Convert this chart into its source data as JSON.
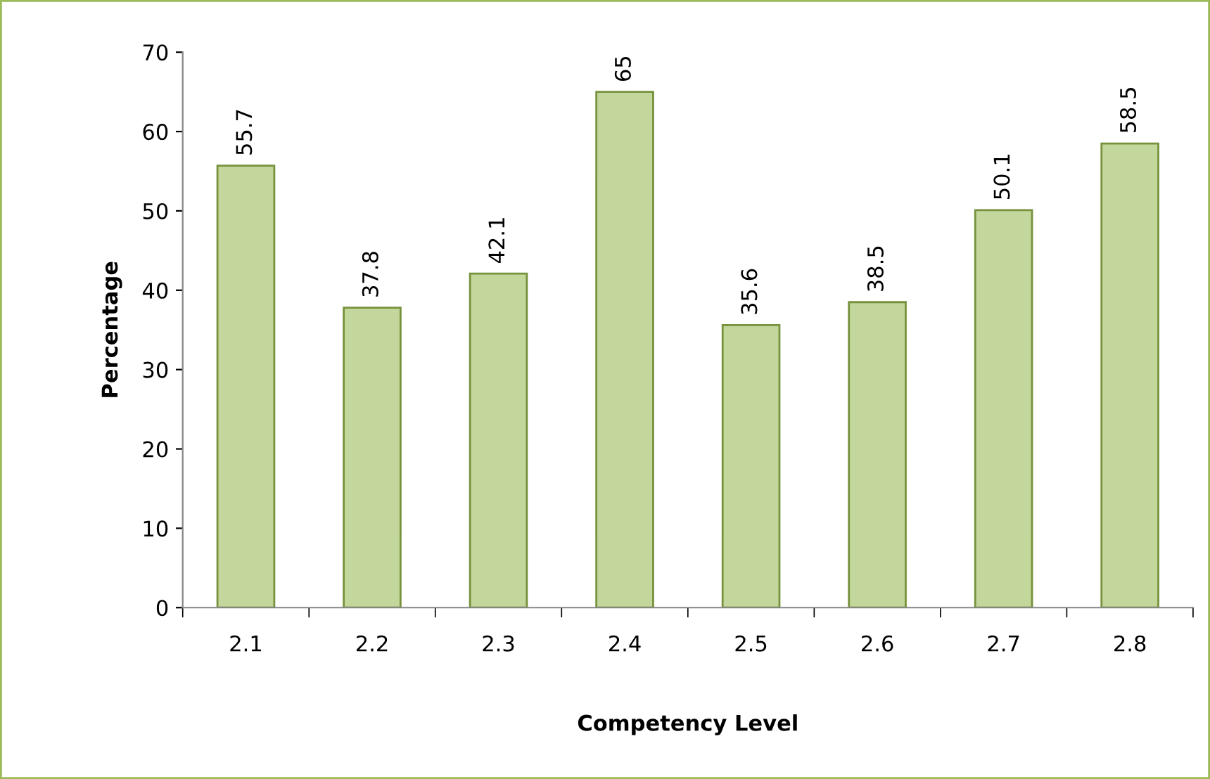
{
  "chart_data": {
    "type": "bar",
    "xlabel": "Competency Level",
    "ylabel": "Percentage",
    "categories": [
      "2.1",
      "2.2",
      "2.3",
      "2.4",
      "2.5",
      "2.6",
      "2.7",
      "2.8"
    ],
    "values": [
      55.7,
      37.8,
      42.1,
      65,
      35.6,
      38.5,
      50.1,
      58.5
    ],
    "color": "#c3d69b",
    "ylim": [
      0,
      70
    ],
    "yticks": [
      0,
      10,
      20,
      30,
      40,
      50,
      60,
      70
    ],
    "grid": false,
    "data_labels": true
  }
}
